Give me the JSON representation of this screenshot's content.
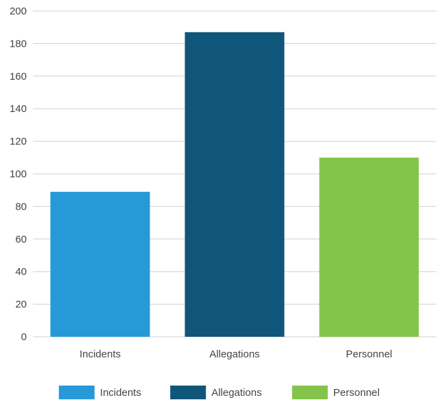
{
  "chart_data": {
    "type": "bar",
    "categories": [
      "Incidents",
      "Allegations",
      "Personnel"
    ],
    "values": [
      89,
      187,
      110
    ],
    "colors": [
      "#2699d9",
      "#10567a",
      "#84c44b"
    ],
    "ylim": [
      0,
      200
    ],
    "yticks": [
      0,
      20,
      40,
      60,
      80,
      100,
      120,
      140,
      160,
      180,
      200
    ],
    "grid": true,
    "legend": {
      "placement": "bottom",
      "entries": [
        "Incidents",
        "Allegations",
        "Personnel"
      ]
    }
  }
}
